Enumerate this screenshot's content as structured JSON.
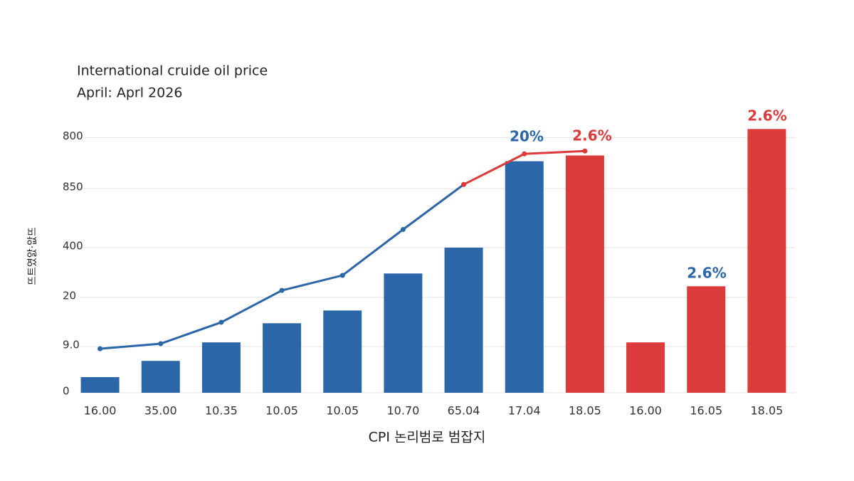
{
  "chart_data": {
    "type": "bar",
    "title": "International cruide oil price",
    "subtitle": "April: Aprl 2026",
    "x_label": "CPI 논리범로 범잡지",
    "y_label": "뜨트였앐·앖뜨",
    "categories": [
      "16.00",
      "35.00",
      "10.35",
      "10.05",
      "10.05",
      "10.70",
      "65.04",
      "17.04",
      "18.05",
      "16.00",
      "16.05",
      "18.05"
    ],
    "series": [
      {
        "type": "bar",
        "colors": [
          "#2b66a8",
          "#2b66a8",
          "#2b66a8",
          "#2b66a8",
          "#2b66a8",
          "#2b66a8",
          "#2b66a8",
          "#2b66a8",
          "#dc3b3b",
          "#dc3b3b",
          "#dc3b3b",
          "#dc3b3b"
        ],
        "values": [
          49,
          100,
          158,
          218,
          258,
          374,
          455,
          726,
          744,
          158,
          334,
          827
        ]
      },
      {
        "type": "line",
        "color": "#2b66a8",
        "values": [
          138,
          154,
          221,
          321,
          368,
          512,
          653,
          null,
          null,
          null,
          null,
          null
        ]
      },
      {
        "type": "line",
        "color": "#dc3b3b",
        "values": [
          null,
          null,
          null,
          null,
          null,
          null,
          653,
          749,
          758,
          null,
          null,
          null
        ]
      }
    ],
    "annotations": [
      {
        "text": "20%",
        "color": "#2b66a8"
      },
      {
        "text": "2.6%",
        "color": "#dc3b3b"
      },
      {
        "text": "2.6%",
        "color": "#dc3b3b"
      },
      {
        "text": "2.6%",
        "color": "#2b66a8"
      }
    ],
    "ylim": [
      0,
      850
    ],
    "yticks": [
      0,
      {
        "value": 145,
        "label": "9.0"
      },
      {
        "value": 299,
        "label": "20"
      },
      {
        "value": 455,
        "label": "400"
      },
      {
        "value": 640,
        "label": "850"
      },
      800
    ],
    "grid": true
  }
}
